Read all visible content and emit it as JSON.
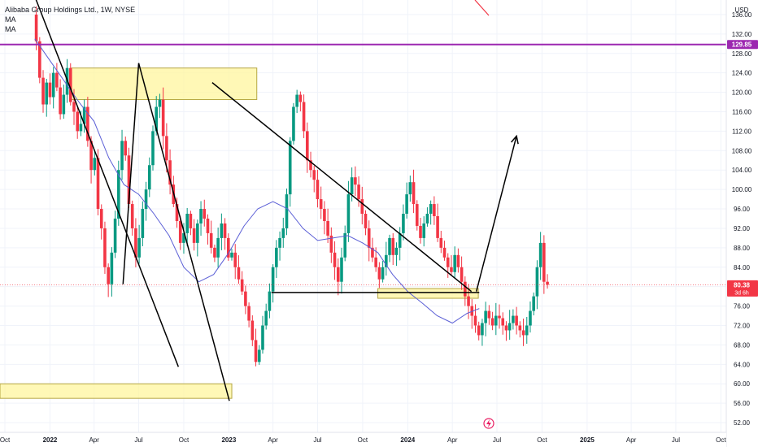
{
  "chart_data": {
    "type": "candlestick",
    "title": "Alibaba Group Holdings Ltd., 1W, NYSE",
    "indicators": [
      "MA",
      "MA"
    ],
    "currency": "USD",
    "ylim": [
      50,
      139
    ],
    "y_ticks": [
      "52.00",
      "56.00",
      "60.00",
      "64.00",
      "68.00",
      "72.00",
      "76.00",
      "80.00",
      "84.00",
      "88.00",
      "92.00",
      "96.00",
      "100.00",
      "104.00",
      "108.00",
      "112.00",
      "116.00",
      "120.00",
      "124.00",
      "128.00",
      "132.00",
      "136.00"
    ],
    "x_range": [
      "2021-09-21",
      "2025-10-12"
    ],
    "x_ticks": [
      {
        "date": "2021-10-01",
        "label": "Oct"
      },
      {
        "date": "2022-01-01",
        "label": "2022"
      },
      {
        "date": "2022-04-01",
        "label": "Apr"
      },
      {
        "date": "2022-07-01",
        "label": "Jul"
      },
      {
        "date": "2022-10-01",
        "label": "Oct"
      },
      {
        "date": "2023-01-01",
        "label": "2023"
      },
      {
        "date": "2023-04-01",
        "label": "Apr"
      },
      {
        "date": "2023-07-01",
        "label": "Jul"
      },
      {
        "date": "2023-10-01",
        "label": "Oct"
      },
      {
        "date": "2024-01-01",
        "label": "2024"
      },
      {
        "date": "2024-04-01",
        "label": "Apr"
      },
      {
        "date": "2024-07-01",
        "label": "Jul"
      },
      {
        "date": "2024-10-01",
        "label": "Oct"
      },
      {
        "date": "2025-01-01",
        "label": "2025"
      },
      {
        "date": "2025-04-01",
        "label": "Apr"
      },
      {
        "date": "2025-07-01",
        "label": "Jul"
      },
      {
        "date": "2025-10-01",
        "label": "Oct"
      }
    ],
    "price_labels": [
      {
        "value": 129.85,
        "text": "129.85",
        "color": "#9c27b0"
      },
      {
        "value": 80.38,
        "text": "80.38",
        "sub": "3d 6h",
        "color": "#f23645"
      }
    ],
    "horizontal_line": {
      "value": 129.85,
      "color": "#9c27b0"
    },
    "current_price": 80.38,
    "colors": {
      "up": "#089981",
      "down": "#f23645",
      "ma": "#5b5fd6",
      "zone_fill": "#fff59d",
      "zone_stroke": "#b5a642",
      "drawing": "#000000"
    },
    "weekly_closes": [
      [
        136.0,
        130.5,
        123.0,
        117.5,
        122.0,
        119.0,
        124.0,
        121.0,
        115.5,
        119.5,
        125.0,
        118.0,
        116.0,
        112.0,
        113.5,
        117.0,
        110.0,
        104.0,
        106.5,
        96.0,
        92.0,
        84.0,
        80.5,
        87.0,
        94.0,
        104.0,
        110.0,
        107.0,
        97.0,
        92.0,
        86.0,
        90.0,
        96.0,
        100.0,
        105.0,
        112.0,
        117.0,
        118.5,
        111.0,
        106.0,
        101.0,
        97.0,
        93.5,
        89.0,
        91.0,
        95.0,
        92.0,
        89.0,
        93.0,
        96.0,
        94.0,
        91.0,
        88.0,
        86.0,
        90.0,
        93.0,
        90.0,
        86.0,
        87.0,
        84.0,
        81.5,
        79.0,
        76.0,
        73.0,
        69.0,
        64.5,
        67.0,
        72.0,
        75.0,
        79.0,
        84.0,
        88.0,
        90.0,
        92.0,
        99.0,
        110.0,
        117.0,
        119.5,
        118.0,
        112.0,
        106.0,
        104.0,
        102.0,
        98.0,
        96.0,
        93.5,
        90.5,
        87.0,
        84.0,
        81.0,
        86.0,
        91.0,
        99.0,
        102.5,
        101.0,
        98.0,
        95.0,
        92.0,
        88.0,
        86.0,
        84.0,
        81.5,
        84.0,
        86.5,
        90.0,
        86.5,
        88.0,
        91.0,
        95.0,
        99.0,
        101.5,
        97.0,
        92.5,
        90.0,
        93.0,
        95.0,
        97.0,
        94.5,
        90.0,
        88.0,
        86.0,
        84.0,
        83.0,
        86.5,
        84.0,
        81.0,
        78.0,
        76.0,
        74.0,
        72.0,
        70.0,
        72.5,
        75.0,
        73.5,
        72.0,
        74.0,
        73.5,
        72.0,
        71.0,
        72.5,
        74.0,
        72.0,
        71.0,
        70.0,
        72.0,
        75.0,
        78.0,
        84.0,
        89.0,
        81.0,
        80.38
      ]
    ],
    "zones": [
      {
        "from": "2022-02-14",
        "to": "2023-02-27",
        "low": 118.5,
        "high": 125.0
      },
      {
        "from": "2021-09-21",
        "to": "2023-01-07",
        "low": 57.0,
        "high": 60.0
      },
      {
        "from": "2023-11-01",
        "to": "2024-05-24",
        "low": 77.6,
        "high": 79.6
      }
    ],
    "trendlines": [
      {
        "from": [
          "2021-11-30",
          140.0
        ],
        "to": [
          "2022-09-20",
          63.5
        ]
      },
      {
        "from": [
          "2022-07-01",
          126.0
        ],
        "to": [
          "2023-01-02",
          56.5
        ]
      },
      {
        "from": [
          "2022-05-30",
          80.5
        ],
        "to": [
          "2022-07-01",
          126.0
        ]
      },
      {
        "from": [
          "2022-11-28",
          122.0
        ],
        "to": [
          "2024-05-10",
          79.0
        ]
      },
      {
        "from": [
          "2023-03-29",
          78.8
        ],
        "to": [
          "2024-05-26",
          78.8
        ]
      }
    ],
    "arrows": [
      {
        "from": [
          "2024-05-20",
          79.0
        ],
        "to": [
          "2024-08-10",
          111.0
        ]
      }
    ],
    "ma_line": [
      [
        "2021-12-01",
        131.0
      ],
      [
        "2022-01-15",
        124.5
      ],
      [
        "2022-03-01",
        118.0
      ],
      [
        "2022-04-01",
        114.0
      ],
      [
        "2022-05-01",
        106.5
      ],
      [
        "2022-06-01",
        101.0
      ],
      [
        "2022-07-01",
        99.0
      ],
      [
        "2022-08-01",
        95.0
      ],
      [
        "2022-09-01",
        90.5
      ],
      [
        "2022-10-01",
        84.0
      ],
      [
        "2022-11-01",
        81.0
      ],
      [
        "2022-12-01",
        82.5
      ],
      [
        "2023-01-01",
        87.0
      ],
      [
        "2023-02-01",
        92.5
      ],
      [
        "2023-03-01",
        96.0
      ],
      [
        "2023-04-01",
        97.5
      ],
      [
        "2023-05-01",
        96.0
      ],
      [
        "2023-06-01",
        92.0
      ],
      [
        "2023-07-01",
        89.5
      ],
      [
        "2023-08-01",
        90.0
      ],
      [
        "2023-09-01",
        90.5
      ],
      [
        "2023-10-01",
        89.0
      ],
      [
        "2023-11-01",
        87.0
      ],
      [
        "2023-12-01",
        82.5
      ],
      [
        "2024-01-01",
        79.0
      ],
      [
        "2024-02-01",
        76.5
      ],
      [
        "2024-03-01",
        74.0
      ],
      [
        "2024-04-01",
        72.5
      ],
      [
        "2024-05-01",
        74.5
      ],
      [
        "2024-05-26",
        75.5
      ]
    ]
  }
}
